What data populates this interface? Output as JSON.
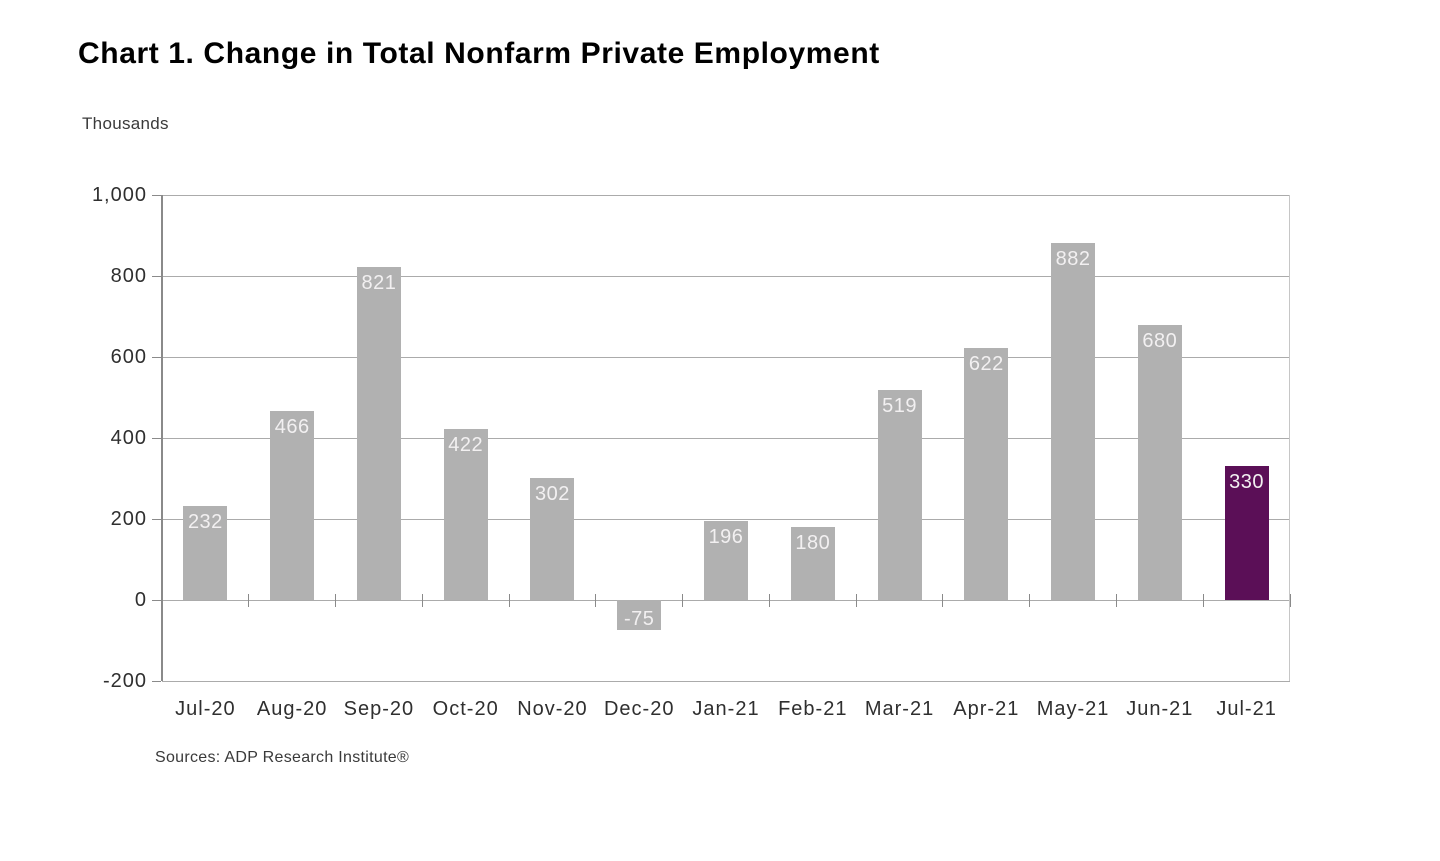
{
  "page": {
    "title": "Chart 1. Change in Total Nonfarm Private Employment",
    "units_label": "Thousands",
    "source_note": "Sources: ADP Research Institute®"
  },
  "colors": {
    "bar_default": "#b1b1b1",
    "bar_highlight": "#5b0f57",
    "bar_label_text": "#f2f0f1",
    "gridline": "#ababab",
    "axis_line": "#8a8a8a",
    "plot_right_border": "#c6c6c6",
    "axis_text": "#2f2f2f",
    "title_text": "#000000",
    "note_text": "#3a3a3a",
    "background": "#ffffff"
  },
  "chart_data": {
    "type": "bar",
    "title": "Chart 1. Change in Total Nonfarm Private Employment",
    "ylabel": "Thousands",
    "xlabel": "",
    "source": "Sources: ADP Research Institute®",
    "categories": [
      "Jul-20",
      "Aug-20",
      "Sep-20",
      "Oct-20",
      "Nov-20",
      "Dec-20",
      "Jan-21",
      "Feb-21",
      "Mar-21",
      "Apr-21",
      "May-21",
      "Jun-21",
      "Jul-21"
    ],
    "values": [
      232,
      466,
      821,
      422,
      302,
      -75,
      196,
      180,
      519,
      622,
      882,
      680,
      330
    ],
    "highlight_index": 12,
    "ylim": [
      -200,
      1000
    ],
    "ytick_interval": 200,
    "ytick_labels": [
      "-200",
      "0",
      "200",
      "400",
      "600",
      "800",
      "1,000"
    ],
    "grid": "horizontal",
    "legend": "none",
    "data_labels": "inside-end"
  }
}
